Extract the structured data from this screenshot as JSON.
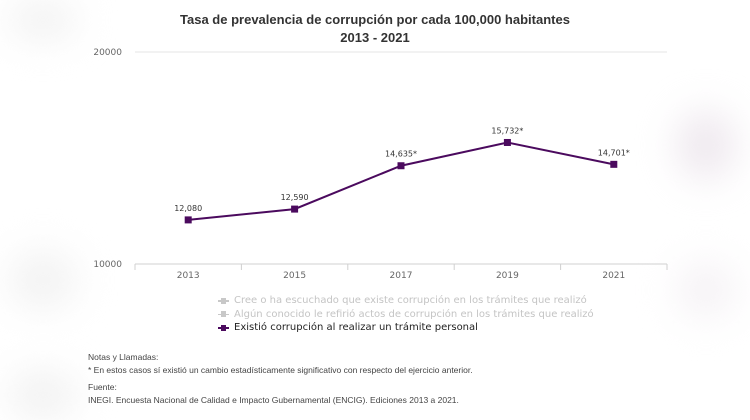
{
  "chart_data": {
    "type": "line",
    "title": "Tasa de prevalencia de corrupción por cada 100,000 habitantes",
    "subtitle": "2013 - 2021",
    "xlabel": "",
    "ylabel": "",
    "categories": [
      "2013",
      "2015",
      "2017",
      "2019",
      "2021"
    ],
    "ylim": [
      10000,
      20000
    ],
    "yticks": [
      "10000",
      "20000"
    ],
    "grid": true,
    "legend_position": "bottom",
    "series": [
      {
        "name": "Cree o ha escuchado que existe corrupción en los trámites que realizó",
        "visible": false,
        "color": "#c8c8c8",
        "values": []
      },
      {
        "name": "Algún conocido le refirió actos de corrupción en los trámites que realizó",
        "visible": false,
        "color": "#c8c8c8",
        "values": []
      },
      {
        "name": "Existió corrupción al realizar un trámite personal",
        "visible": true,
        "color": "#4b0a5e",
        "values": [
          12080,
          12590,
          14635,
          15732,
          14701
        ],
        "data_labels": [
          "12,080",
          "12,590",
          "14,635*",
          "15,732*",
          "14,701*"
        ]
      }
    ]
  },
  "notes": {
    "heading": "Notas y Llamadas:",
    "text": "* En estos casos sí existió un cambio estadísticamente significativo con respecto del ejercicio anterior.",
    "source_heading": "Fuente:",
    "source_text": "INEGI. Encuesta Nacional de Calidad e Impacto Gubernamental (ENCIG). Ediciones 2013 a 2021."
  }
}
